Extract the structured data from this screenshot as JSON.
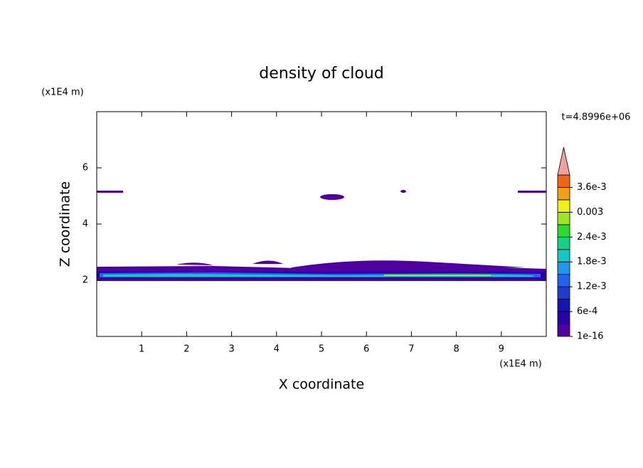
{
  "chart_data": {
    "type": "contour",
    "title": "density of cloud",
    "x_label": "X coordinate",
    "y_label": "Z coordinate",
    "x_unit": "(x1E4 m)",
    "y_unit": "(x1E4 m)",
    "time_label": "t=4.8996e+06",
    "xlim": [
      0,
      10
    ],
    "xticks": [
      1,
      2,
      3,
      4,
      5,
      6,
      7,
      8,
      9
    ],
    "ylim": [
      0,
      8
    ],
    "yticks": [
      2,
      4,
      6
    ],
    "colorbar_lim": [
      1e-16,
      0.0039
    ],
    "colorbar_ticks": [
      {
        "value": 1e-16,
        "label": "1e-16"
      },
      {
        "value": 0.0006,
        "label": "6e-4"
      },
      {
        "value": 0.0012,
        "label": "1.2e-3"
      },
      {
        "value": 0.0018,
        "label": "1.8e-3"
      },
      {
        "value": 0.0024,
        "label": "2.4e-3"
      },
      0.003,
      {
        "value": 0.0036,
        "label": "3.6e-3"
      }
    ],
    "colorbar_colors": [
      "#5000a0",
      "#2a00a8",
      "#1414b4",
      "#1e3cd2",
      "#1e64f0",
      "#1e96f0",
      "#14c8c8",
      "#14d28c",
      "#28dc28",
      "#a0e61e",
      "#f0f014",
      "#f0a014",
      "#f06414",
      "#e61e1e"
    ],
    "extend_color": "#f4a0a0"
  }
}
